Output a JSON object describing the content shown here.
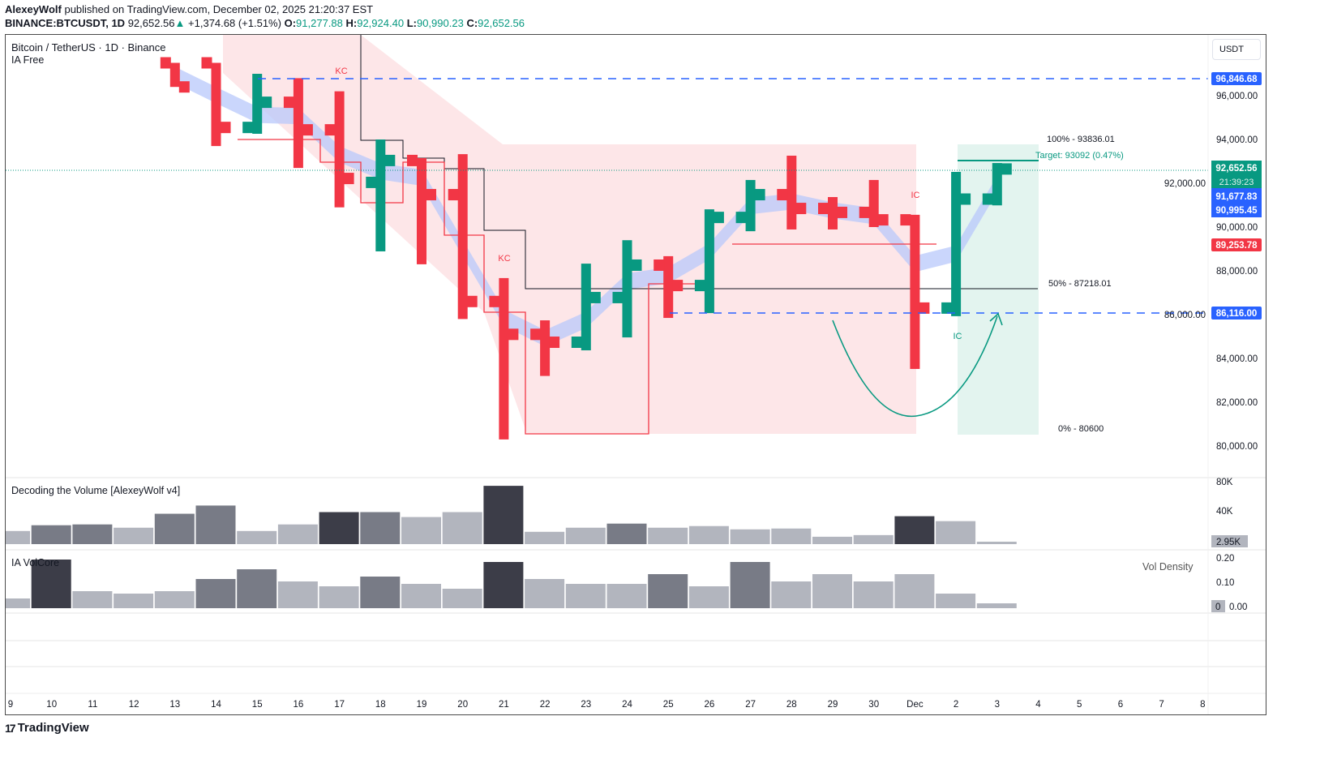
{
  "header": {
    "author": "AlexeyWolf",
    "published": "published on TradingView.com, December 02, 2025 21:20:37 EST",
    "symbol": "BINANCE:BTCUSDT, 1D",
    "last": "92,652.56",
    "change": "+1,374.68 (+1.51%)",
    "o_label": "O:",
    "o": "91,277.88",
    "h_label": "H:",
    "h": "92,924.40",
    "l_label": "L:",
    "l": "90,990.23",
    "c_label": "C:",
    "c": "92,652.56"
  },
  "legend": {
    "title": "Bitcoin / TetherUS · 1D · Binance",
    "indicator": "IA Free",
    "volume_title": "Decoding the Volume [AlexeyWolf v4]",
    "volcore_title": "IA VolCore",
    "vol_density": "Vol Density"
  },
  "currency_button": "USDT",
  "annotations": {
    "kc1": "KC",
    "kc2": "KC",
    "ic1": "IC",
    "ic2": "IC",
    "fib100": "100% - 93836.01",
    "fib50": "50% - 87218.01",
    "fib0": "0% - 80600",
    "target": "Target: 93092 (0.47%)"
  },
  "price_labels": {
    "level_high": "96,846.68",
    "last": "92,652.56",
    "countdown": "21:39:23",
    "blue1": "91,677.83",
    "blue2": "90,995.45",
    "red": "89,253.78",
    "level_low": "86,116.00",
    "volume_last": "2.95K",
    "density_last": "0"
  },
  "colors": {
    "up": "#089981",
    "down": "#f23645",
    "blue": "#2962ff",
    "zone_red": "#fde6e8",
    "zone_green": "#e3f4ef",
    "band": "#b8c8fb"
  },
  "footer": {
    "brand": "TradingView"
  },
  "chart_data": [
    {
      "type": "ohlc",
      "title": "Bitcoin / TetherUS · 1D · Binance",
      "ylim": [
        79500,
        97500
      ],
      "y_ticks": [
        "96,000.00",
        "94,000.00",
        "92,000.00",
        "90,000.00",
        "88,000.00",
        "86,000.00",
        "84,000.00",
        "82,000.00",
        "80,000.00"
      ],
      "x_ticks": [
        "9",
        "10",
        "11",
        "12",
        "13",
        "14",
        "15",
        "16",
        "17",
        "18",
        "19",
        "20",
        "21",
        "22",
        "23",
        "24",
        "25",
        "26",
        "27",
        "28",
        "29",
        "30",
        "Dec",
        "2",
        "3",
        "4",
        "5",
        "6",
        "7",
        "8"
      ],
      "candles": [
        {
          "d": "13",
          "o": 97500,
          "h": 97500,
          "l": 96400,
          "c": 96400
        },
        {
          "d": "14",
          "o": 97500,
          "h": 97500,
          "l": 93700,
          "c": 94550
        },
        {
          "d": "15",
          "o": 94550,
          "h": 97000,
          "l": 94260,
          "c": 95700
        },
        {
          "d": "16",
          "o": 95700,
          "h": 96800,
          "l": 92700,
          "c": 94440
        },
        {
          "d": "17",
          "o": 94440,
          "h": 96200,
          "l": 90900,
          "c": 92220
        },
        {
          "d": "18",
          "o": 92040,
          "h": 94000,
          "l": 88890,
          "c": 93040
        },
        {
          "d": "19",
          "o": 93040,
          "h": 93150,
          "l": 88300,
          "c": 91480
        },
        {
          "d": "20",
          "o": 91480,
          "h": 93330,
          "l": 85800,
          "c": 86600
        },
        {
          "d": "21",
          "o": 86600,
          "h": 87670,
          "l": 80300,
          "c": 85100
        },
        {
          "d": "22",
          "o": 85100,
          "h": 85740,
          "l": 83200,
          "c": 84740
        },
        {
          "d": "23",
          "o": 84740,
          "h": 88330,
          "l": 84370,
          "c": 86780
        },
        {
          "d": "24",
          "o": 86780,
          "h": 89400,
          "l": 84960,
          "c": 88260
        },
        {
          "d": "25",
          "o": 88260,
          "h": 88670,
          "l": 85850,
          "c": 87330
        },
        {
          "d": "26",
          "o": 87330,
          "h": 90810,
          "l": 86070,
          "c": 90440
        },
        {
          "d": "27",
          "o": 90440,
          "h": 92150,
          "l": 89810,
          "c": 91480
        },
        {
          "d": "28",
          "o": 91480,
          "h": 93260,
          "l": 89890,
          "c": 90850
        },
        {
          "d": "29",
          "o": 90850,
          "h": 91370,
          "l": 89890,
          "c": 90670
        },
        {
          "d": "30",
          "o": 90670,
          "h": 92150,
          "l": 90000,
          "c": 90330
        },
        {
          "d": "Dec 1",
          "o": 90330,
          "h": 90560,
          "l": 83520,
          "c": 86300
        },
        {
          "d": "2",
          "o": 86300,
          "h": 92520,
          "l": 85930,
          "c": 91277.88
        },
        {
          "d": "3",
          "o": 91277.88,
          "h": 92924.4,
          "l": 90990.23,
          "c": 92652.56
        }
      ]
    },
    {
      "type": "bar",
      "title": "Decoding the Volume [AlexeyWolf v4]",
      "ylim": [
        0,
        80000
      ],
      "y_ticks": [
        "80K",
        "40K"
      ],
      "categories": [
        "9",
        "10",
        "11",
        "12",
        "13",
        "14",
        "15",
        "16",
        "17",
        "18",
        "19",
        "20",
        "21",
        "22",
        "23",
        "24",
        "25",
        "26",
        "27",
        "28",
        "29",
        "30",
        "Dec 1",
        "2",
        "3"
      ],
      "values": [
        16000,
        23000,
        24000,
        20000,
        37000,
        47000,
        16000,
        24000,
        39000,
        39000,
        33000,
        39000,
        71000,
        15000,
        20000,
        25000,
        20000,
        22000,
        18000,
        19000,
        9000,
        11000,
        34000,
        28000,
        2950
      ],
      "shade": [
        "l",
        "m",
        "m",
        "l",
        "m",
        "m",
        "l",
        "l",
        "d",
        "m",
        "l",
        "l",
        "d",
        "l",
        "l",
        "m",
        "l",
        "l",
        "l",
        "l",
        "l",
        "l",
        "d",
        "l",
        "l"
      ]
    },
    {
      "type": "bar",
      "title": "IA VolCore",
      "ylim": [
        0,
        0.22
      ],
      "y_ticks": [
        "0.20",
        "0.10",
        "0.00"
      ],
      "categories": [
        "9",
        "10",
        "11",
        "12",
        "13",
        "14",
        "15",
        "16",
        "17",
        "18",
        "19",
        "20",
        "21",
        "22",
        "23",
        "24",
        "25",
        "26",
        "27",
        "28",
        "29",
        "30",
        "Dec 1",
        "2",
        "3"
      ],
      "values": [
        0.04,
        0.2,
        0.07,
        0.06,
        0.07,
        0.12,
        0.16,
        0.11,
        0.09,
        0.13,
        0.1,
        0.08,
        0.19,
        0.12,
        0.1,
        0.1,
        0.14,
        0.09,
        0.19,
        0.11,
        0.14,
        0.11,
        0.14,
        0.06,
        0.02
      ],
      "shade": [
        "l",
        "d",
        "l",
        "l",
        "l",
        "m",
        "m",
        "l",
        "l",
        "m",
        "l",
        "l",
        "d",
        "l",
        "l",
        "l",
        "m",
        "l",
        "m",
        "l",
        "l",
        "l",
        "l",
        "l",
        "l"
      ]
    }
  ]
}
